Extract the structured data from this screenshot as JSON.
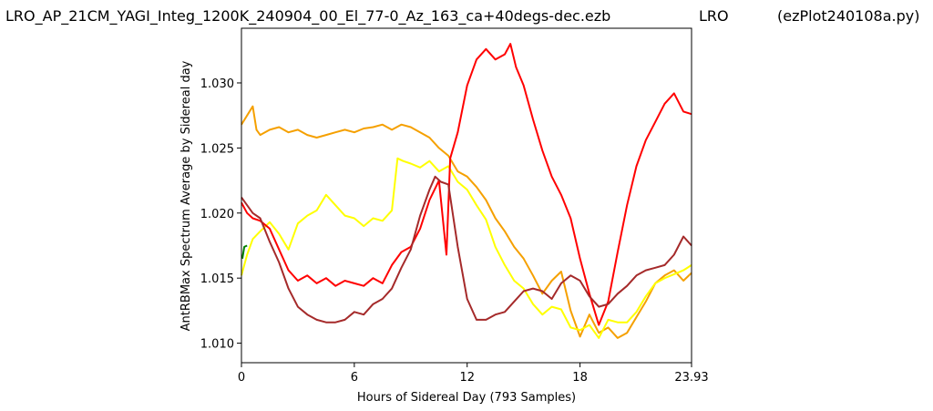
{
  "header": {
    "title_left": "LRO_AP_21CM_YAGI_Integ_1200K_240904_00_El_77-0_Az_163_ca+40degs-dec.ezb",
    "title_mid": "LRO",
    "title_right": "(ezPlot240108a.py)"
  },
  "chart_data": {
    "type": "line",
    "xlabel": "Hours of Sidereal Day  (793 Samples)",
    "ylabel": "AntRBMax Spectrum Average by Sidereal day",
    "xlim": [
      0,
      23.93
    ],
    "ylim": [
      1.0085,
      1.0342
    ],
    "xticks": [
      0,
      6,
      12,
      18,
      23.93
    ],
    "xtick_labels": [
      "0",
      "6",
      "12",
      "18",
      "23.93"
    ],
    "yticks": [
      1.01,
      1.015,
      1.02,
      1.025,
      1.03
    ],
    "ytick_labels": [
      "1.010",
      "1.015",
      "1.020",
      "1.025",
      "1.030"
    ],
    "grid": false,
    "series": [
      {
        "color": "#f5a000",
        "x": [
          0,
          0.3,
          0.6,
          0.8,
          1.0,
          1.5,
          2,
          2.5,
          3,
          3.5,
          4,
          4.5,
          5,
          5.5,
          6,
          6.5,
          7,
          7.5,
          8,
          8.5,
          9,
          9.5,
          10,
          10.5,
          11,
          11.5,
          12,
          12.5,
          13,
          13.5,
          14,
          14.5,
          15,
          15.5,
          16,
          16.5,
          17,
          17.5,
          18,
          18.5,
          19,
          19.5,
          20,
          20.5,
          21,
          21.5,
          22,
          22.5,
          23,
          23.5,
          23.93
        ],
        "y": [
          1.0268,
          1.0275,
          1.0282,
          1.0264,
          1.026,
          1.0264,
          1.0266,
          1.0262,
          1.0264,
          1.026,
          1.0258,
          1.026,
          1.0262,
          1.0264,
          1.0262,
          1.0265,
          1.0266,
          1.0268,
          1.0264,
          1.0268,
          1.0266,
          1.0262,
          1.0258,
          1.025,
          1.0244,
          1.0232,
          1.0228,
          1.022,
          1.021,
          1.0196,
          1.0186,
          1.0174,
          1.0165,
          1.0152,
          1.0138,
          1.0148,
          1.0155,
          1.0125,
          1.0105,
          1.0122,
          1.0108,
          1.0112,
          1.0104,
          1.0108,
          1.012,
          1.0132,
          1.0146,
          1.0152,
          1.0156,
          1.0148,
          1.0154
        ]
      },
      {
        "color": "#ffff00",
        "x": [
          0,
          0.3,
          0.6,
          1.0,
          1.5,
          2.0,
          2.5,
          3.0,
          3.5,
          4.0,
          4.5,
          5.0,
          5.5,
          6.0,
          6.5,
          7.0,
          7.5,
          8.0,
          8.3,
          8.6,
          9.0,
          9.5,
          10.0,
          10.5,
          11.0,
          11.5,
          12.0,
          12.5,
          13.0,
          13.5,
          14.0,
          14.5,
          15.0,
          15.5,
          16.0,
          16.5,
          17.0,
          17.5,
          18.0,
          18.5,
          19.0,
          19.5,
          20.0,
          20.5,
          21.0,
          21.5,
          22.0,
          22.5,
          23.0,
          23.5,
          23.93
        ],
        "y": [
          1.0152,
          1.0168,
          1.018,
          1.0186,
          1.0193,
          1.0184,
          1.0172,
          1.0192,
          1.0198,
          1.0202,
          1.0214,
          1.0206,
          1.0198,
          1.0196,
          1.019,
          1.0196,
          1.0194,
          1.0202,
          1.0242,
          1.024,
          1.0238,
          1.0235,
          1.024,
          1.0232,
          1.0236,
          1.0224,
          1.0218,
          1.0206,
          1.0195,
          1.0174,
          1.016,
          1.0148,
          1.0142,
          1.013,
          1.0122,
          1.0128,
          1.0126,
          1.0112,
          1.011,
          1.0114,
          1.0104,
          1.0118,
          1.0116,
          1.0116,
          1.0124,
          1.0136,
          1.0146,
          1.015,
          1.0153,
          1.0156,
          1.016
        ]
      },
      {
        "color": "#ff0000",
        "x": [
          0,
          0.3,
          0.6,
          1.0,
          1.5,
          2.0,
          2.5,
          3.0,
          3.5,
          4.0,
          4.5,
          5.0,
          5.5,
          6.0,
          6.5,
          7.0,
          7.5,
          8.0,
          8.5,
          9.0,
          9.5,
          10.0,
          10.5,
          10.9,
          11.1,
          11.5,
          12.0,
          12.5,
          13.0,
          13.5,
          14.0,
          14.3,
          14.6,
          15.0,
          15.5,
          16.0,
          16.5,
          17.0,
          17.5,
          18.0,
          18.5,
          19.0,
          19.5,
          20.0,
          20.5,
          21.0,
          21.5,
          22.0,
          22.5,
          23.0,
          23.5,
          23.93
        ],
        "y": [
          1.0208,
          1.02,
          1.0196,
          1.0194,
          1.0188,
          1.0172,
          1.0156,
          1.0148,
          1.0152,
          1.0146,
          1.015,
          1.0144,
          1.0148,
          1.0146,
          1.0144,
          1.015,
          1.0146,
          1.016,
          1.017,
          1.0174,
          1.0188,
          1.021,
          1.0225,
          1.0168,
          1.0242,
          1.0262,
          1.0298,
          1.0318,
          1.0326,
          1.0318,
          1.0322,
          1.033,
          1.0312,
          1.0298,
          1.0272,
          1.0248,
          1.0228,
          1.0214,
          1.0196,
          1.0165,
          1.0138,
          1.0114,
          1.0132,
          1.017,
          1.0206,
          1.0236,
          1.0256,
          1.027,
          1.0284,
          1.0292,
          1.0278,
          1.0276
        ]
      },
      {
        "color": "#a52a2a",
        "x": [
          0,
          0.3,
          0.6,
          1.0,
          1.5,
          2.0,
          2.5,
          3.0,
          3.5,
          4.0,
          4.5,
          5.0,
          5.5,
          6.0,
          6.5,
          7.0,
          7.5,
          8.0,
          8.5,
          9.0,
          9.5,
          10.0,
          10.3,
          10.6,
          11.0,
          11.5,
          12.0,
          12.5,
          13.0,
          13.5,
          14.0,
          14.5,
          15.0,
          15.5,
          16.0,
          16.5,
          17.0,
          17.5,
          18.0,
          18.5,
          19.0,
          19.5,
          20.0,
          20.5,
          21.0,
          21.5,
          22.0,
          22.5,
          23.0,
          23.5,
          23.93
        ],
        "y": [
          1.0212,
          1.0206,
          1.02,
          1.0196,
          1.0178,
          1.0162,
          1.0142,
          1.0128,
          1.0122,
          1.0118,
          1.0116,
          1.0116,
          1.0118,
          1.0124,
          1.0122,
          1.013,
          1.0134,
          1.0142,
          1.0158,
          1.0172,
          1.0198,
          1.0218,
          1.0228,
          1.0224,
          1.0222,
          1.0174,
          1.0134,
          1.0118,
          1.0118,
          1.0122,
          1.0124,
          1.0132,
          1.014,
          1.0142,
          1.014,
          1.0134,
          1.0146,
          1.0152,
          1.0148,
          1.0136,
          1.0128,
          1.013,
          1.0138,
          1.0144,
          1.0152,
          1.0156,
          1.0158,
          1.016,
          1.0168,
          1.0182,
          1.0175
        ]
      },
      {
        "color": "#008000",
        "x": [
          0.05,
          0.15,
          0.3
        ],
        "y": [
          1.0165,
          1.0174,
          1.0175
        ]
      }
    ]
  }
}
